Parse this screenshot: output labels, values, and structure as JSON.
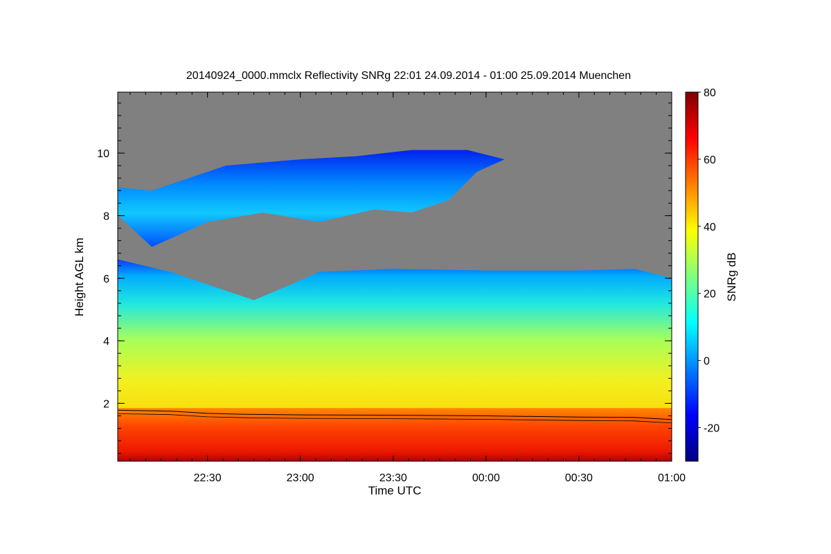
{
  "chart_data": {
    "type": "heatmap",
    "title": "20140924_0000.mmclx Reflectivity SNRg   22:01 24.09.2014 - 01:00 25.09.2014 Muenchen",
    "xlabel": "Time UTC",
    "ylabel": "Height AGL km",
    "x_range_hours": [
      22.0167,
      25.0
    ],
    "x_ticks": [
      {
        "value": 22.5,
        "label": "22:30"
      },
      {
        "value": 23.0,
        "label": "23:00"
      },
      {
        "value": 23.5,
        "label": "23:30"
      },
      {
        "value": 24.0,
        "label": "00:00"
      },
      {
        "value": 24.5,
        "label": "00:30"
      },
      {
        "value": 25.0,
        "label": "01:00"
      }
    ],
    "y_range_km": [
      0.15,
      11.95
    ],
    "y_ticks": [
      2,
      4,
      6,
      8,
      10
    ],
    "colorbar": {
      "label": "SNRg dB",
      "range": [
        -30,
        80
      ],
      "ticks": [
        -20,
        0,
        20,
        40,
        60,
        80
      ],
      "colormap": [
        "#00007f",
        "#0000ff",
        "#007fff",
        "#00ffff",
        "#7fff7f",
        "#ffff00",
        "#ff7f00",
        "#ff0000",
        "#7f0000"
      ]
    },
    "no_signal_color": "#808080",
    "structures": {
      "upper_cloud_base_km": [
        [
          22.02,
          8.0
        ],
        [
          22.2,
          7.0
        ],
        [
          22.5,
          7.8
        ],
        [
          22.8,
          8.1
        ],
        [
          23.1,
          7.8
        ],
        [
          23.4,
          8.2
        ],
        [
          23.6,
          8.1
        ],
        [
          23.8,
          8.5
        ],
        [
          23.95,
          9.4
        ],
        [
          24.1,
          9.8
        ]
      ],
      "upper_cloud_top_km": [
        [
          22.02,
          8.9
        ],
        [
          22.2,
          8.8
        ],
        [
          22.4,
          9.2
        ],
        [
          22.6,
          9.6
        ],
        [
          22.8,
          9.7
        ],
        [
          23.0,
          9.8
        ],
        [
          23.3,
          9.9
        ],
        [
          23.6,
          10.1
        ],
        [
          23.9,
          10.1
        ],
        [
          24.1,
          9.8
        ]
      ],
      "lower_layer_top_km": [
        [
          22.02,
          6.6
        ],
        [
          22.3,
          6.2
        ],
        [
          22.5,
          5.8
        ],
        [
          22.75,
          5.3
        ],
        [
          22.95,
          5.8
        ],
        [
          23.1,
          6.2
        ],
        [
          23.5,
          6.3
        ],
        [
          24.0,
          6.25
        ],
        [
          24.5,
          6.25
        ],
        [
          24.8,
          6.3
        ],
        [
          25.0,
          6.0
        ]
      ],
      "melting_layer_line_km": [
        [
          22.02,
          1.78
        ],
        [
          22.3,
          1.75
        ],
        [
          22.5,
          1.68
        ],
        [
          22.7,
          1.65
        ],
        [
          23.0,
          1.63
        ],
        [
          23.5,
          1.62
        ],
        [
          24.0,
          1.6
        ],
        [
          24.5,
          1.56
        ],
        [
          24.8,
          1.55
        ],
        [
          25.0,
          1.48
        ]
      ],
      "surface_snr_db": 70,
      "layer_mid_snr_db": 40,
      "layer_top_snr_db": 5,
      "upper_cloud_snr_db": 3
    }
  }
}
